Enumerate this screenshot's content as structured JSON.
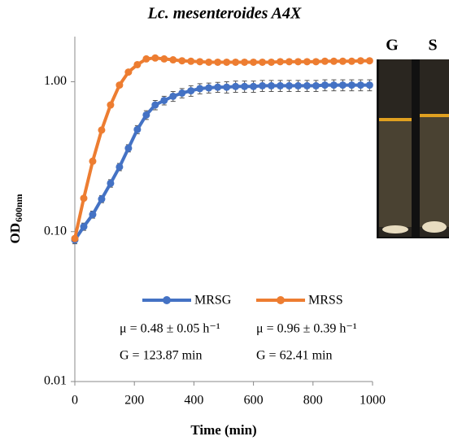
{
  "chart_data": {
    "type": "line",
    "title": "Lc. mesenteroides A4X",
    "x_label": "Time (min)",
    "y_label": "OD",
    "y_label_sub": "600nm",
    "x": [
      0,
      30,
      60,
      90,
      120,
      150,
      180,
      210,
      240,
      270,
      300,
      330,
      360,
      390,
      420,
      450,
      480,
      510,
      540,
      570,
      600,
      630,
      660,
      690,
      720,
      750,
      780,
      810,
      840,
      870,
      900,
      930,
      960,
      990
    ],
    "series": [
      {
        "name": "MRSG",
        "color": "#4472c4",
        "values": [
          0.088,
          0.108,
          0.13,
          0.165,
          0.21,
          0.27,
          0.36,
          0.48,
          0.6,
          0.7,
          0.75,
          0.8,
          0.84,
          0.87,
          0.9,
          0.91,
          0.92,
          0.92,
          0.93,
          0.93,
          0.93,
          0.94,
          0.94,
          0.94,
          0.94,
          0.94,
          0.94,
          0.94,
          0.95,
          0.95,
          0.95,
          0.95,
          0.95,
          0.95
        ],
        "errors": [
          0.005,
          0.006,
          0.007,
          0.009,
          0.012,
          0.015,
          0.02,
          0.03,
          0.04,
          0.05,
          0.05,
          0.06,
          0.06,
          0.07,
          0.07,
          0.07,
          0.07,
          0.08,
          0.08,
          0.08,
          0.08,
          0.08,
          0.08,
          0.08,
          0.08,
          0.08,
          0.08,
          0.08,
          0.08,
          0.08,
          0.08,
          0.08,
          0.08,
          0.08
        ]
      },
      {
        "name": "MRSS",
        "color": "#ed7d31",
        "values": [
          0.09,
          0.167,
          0.295,
          0.476,
          0.7,
          0.95,
          1.16,
          1.3,
          1.42,
          1.44,
          1.42,
          1.4,
          1.38,
          1.37,
          1.36,
          1.35,
          1.35,
          1.35,
          1.35,
          1.35,
          1.35,
          1.35,
          1.35,
          1.36,
          1.36,
          1.36,
          1.36,
          1.36,
          1.37,
          1.37,
          1.37,
          1.37,
          1.38,
          1.38
        ]
      }
    ],
    "xlim": [
      0,
      1000
    ],
    "xticks": [
      0,
      200,
      400,
      600,
      800,
      1000
    ],
    "ylim": [
      0.01,
      2
    ],
    "log_y": true,
    "yticks": [
      {
        "value": 0.01,
        "label": "0.01"
      },
      {
        "value": 0.1,
        "label": "0.10"
      },
      {
        "value": 1,
        "label": "1.00"
      }
    ],
    "annotations": [
      "μ = 0.48 ± 0.05 h⁻¹",
      "G = 123.87 min",
      "μ = 0.96 ± 0.39 h⁻¹",
      "G = 62.41 min"
    ],
    "inset_labels": [
      "G",
      "S"
    ]
  }
}
